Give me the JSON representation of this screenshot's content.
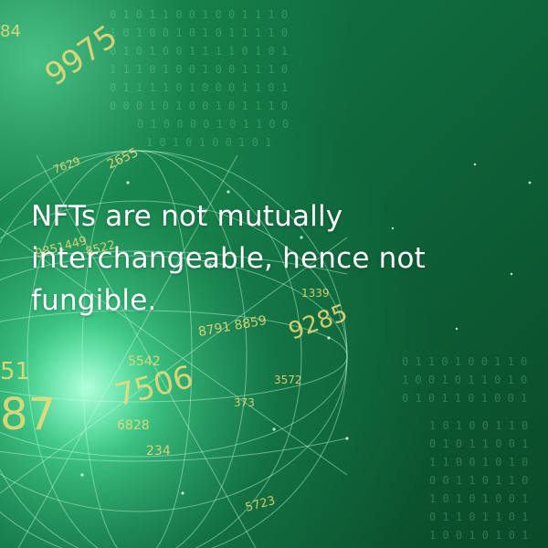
{
  "headline": "NFTs are not mutually interchangeable, hence not fungible.",
  "colors": {
    "background": "#0c5a33",
    "glow": "#82ffc8",
    "text": "#ffffff",
    "numbers": "#f0dc78"
  }
}
